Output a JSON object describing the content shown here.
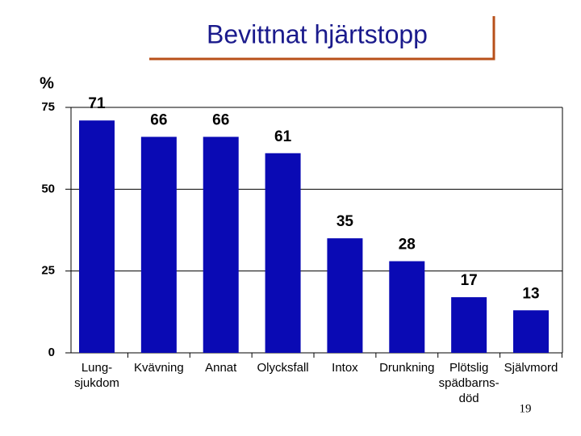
{
  "chart_data": {
    "type": "bar",
    "title": "Bevittnat hjärtstopp",
    "y_label": "%",
    "categories": [
      "Lung-\nsjukdom",
      "Kvävning",
      "Annat",
      "Olycksfall",
      "Intox",
      "Drunkning",
      "Plötslig\nspädbarns-\ndöd",
      "Självmord"
    ],
    "values": [
      71,
      66,
      66,
      61,
      35,
      28,
      17,
      13
    ],
    "color": "#0a0ab4",
    "ylim": [
      0,
      75
    ],
    "yticks": [
      0,
      25,
      50,
      75
    ],
    "grid": true
  },
  "page_number": "19"
}
